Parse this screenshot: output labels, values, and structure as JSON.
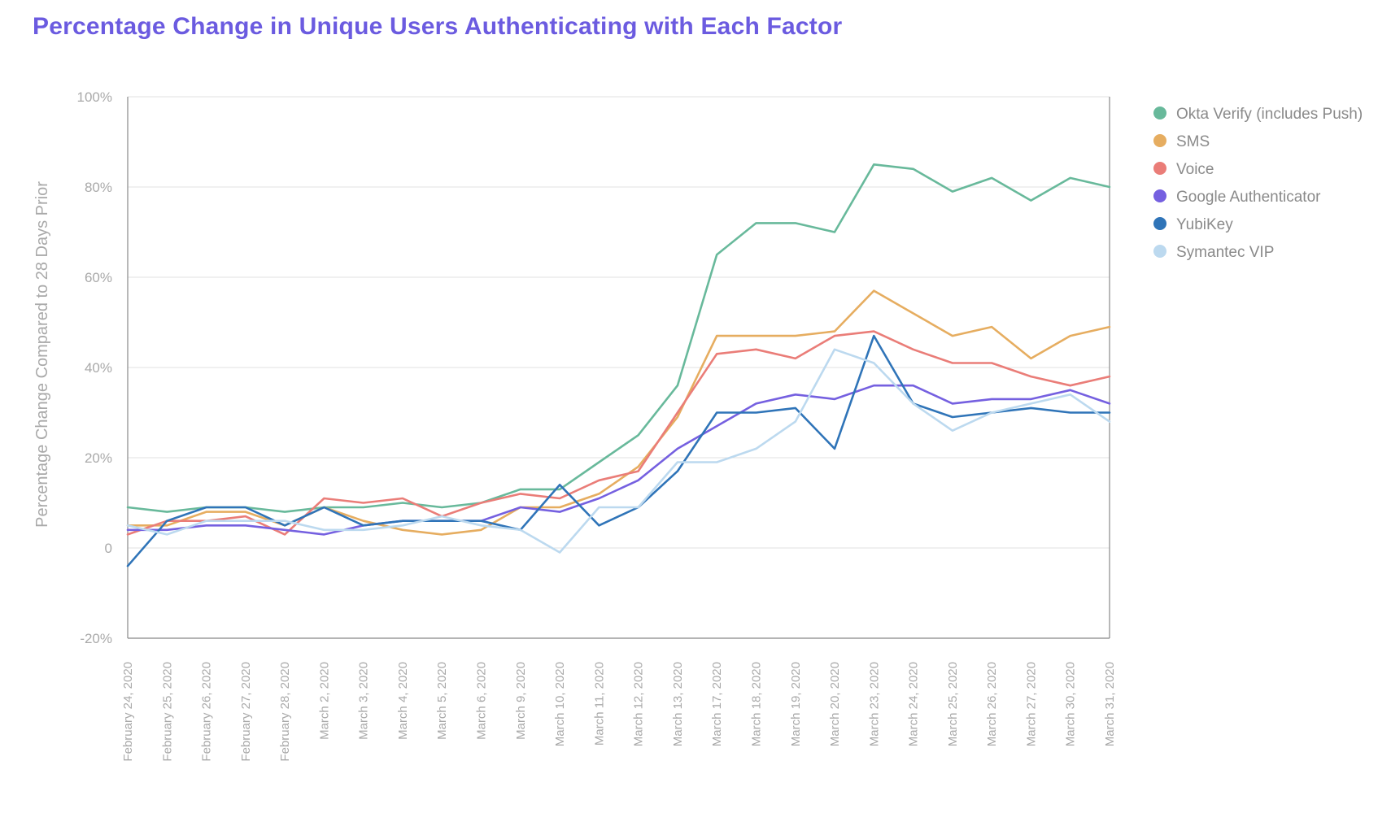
{
  "chart_data": {
    "type": "line",
    "title": "Percentage Change in Unique Users Authenticating with Each Factor",
    "xlabel": "",
    "ylabel": "Percentage Change Compared to 28 Days Prior",
    "ylim": [
      -20,
      100
    ],
    "yticks": [
      -20,
      0,
      20,
      40,
      60,
      80,
      100
    ],
    "ytick_labels": [
      "-20%",
      "0",
      "20%",
      "40%",
      "60%",
      "80%",
      "100%"
    ],
    "grid": true,
    "legend_position": "right",
    "categories": [
      "February 24, 2020",
      "February 25, 2020",
      "February 26, 2020",
      "February 27, 2020",
      "February 28, 2020",
      "March 2, 2020",
      "March 3, 2020",
      "March 4, 2020",
      "March 5, 2020",
      "March 6, 2020",
      "March 9, 2020",
      "March 10, 2020",
      "March 11, 2020",
      "March 12, 2020",
      "March 13, 2020",
      "March 17, 2020",
      "March 18, 2020",
      "March 19, 2020",
      "March 20, 2020",
      "March 23, 2020",
      "March 24, 2020",
      "March 25, 2020",
      "March 26, 2020",
      "March 27, 2020",
      "March 30, 2020",
      "March 31, 2020"
    ],
    "series": [
      {
        "name": "Okta Verify (includes Push)",
        "color": "#68b99b",
        "values": [
          9,
          8,
          9,
          9,
          8,
          9,
          9,
          10,
          9,
          10,
          13,
          13,
          19,
          25,
          36,
          65,
          72,
          72,
          70,
          85,
          84,
          79,
          82,
          77,
          82,
          80
        ]
      },
      {
        "name": "SMS",
        "color": "#e6ad60",
        "values": [
          5,
          5,
          8,
          8,
          5,
          9,
          6,
          4,
          3,
          4,
          9,
          9,
          12,
          18,
          29,
          47,
          47,
          47,
          48,
          57,
          52,
          47,
          49,
          42,
          47,
          49
        ]
      },
      {
        "name": "Voice",
        "color": "#ea7d78",
        "values": [
          3,
          6,
          6,
          7,
          3,
          11,
          10,
          11,
          7,
          10,
          12,
          11,
          15,
          17,
          30,
          43,
          44,
          42,
          47,
          48,
          44,
          41,
          41,
          38,
          36,
          38
        ]
      },
      {
        "name": "Google Authenticator",
        "color": "#7560e0",
        "values": [
          4,
          4,
          5,
          5,
          4,
          3,
          5,
          6,
          6,
          6,
          9,
          8,
          11,
          15,
          22,
          27,
          32,
          34,
          33,
          36,
          36,
          32,
          33,
          33,
          35,
          32
        ]
      },
      {
        "name": "YubiKey",
        "color": "#2f74b8",
        "values": [
          -4,
          6,
          9,
          9,
          5,
          9,
          5,
          6,
          6,
          6,
          4,
          14,
          5,
          9,
          17,
          30,
          30,
          31,
          22,
          47,
          32,
          29,
          30,
          31,
          30,
          30
        ]
      },
      {
        "name": "Symantec VIP",
        "color": "#bcd9ef",
        "values": [
          5,
          3,
          6,
          6,
          6,
          4,
          4,
          5,
          7,
          5,
          4,
          -1,
          9,
          9,
          19,
          19,
          22,
          28,
          44,
          41,
          32,
          26,
          30,
          32,
          34,
          28
        ]
      }
    ]
  }
}
